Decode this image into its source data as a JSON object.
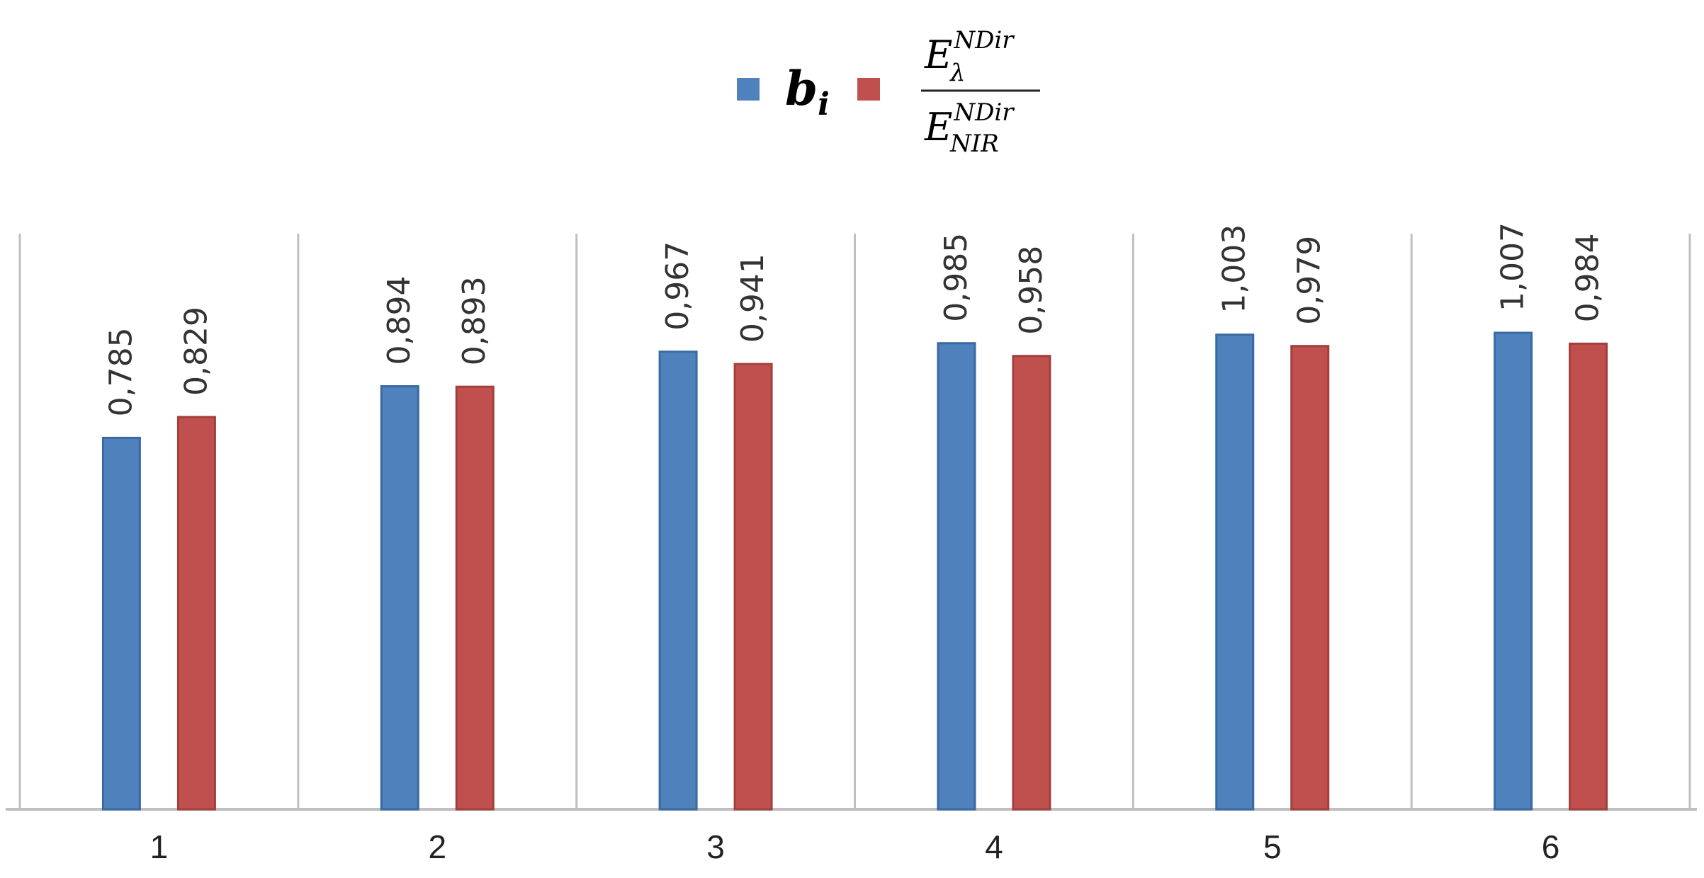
{
  "chart_data": {
    "type": "bar",
    "categories": [
      "1",
      "2",
      "3",
      "4",
      "5",
      "6"
    ],
    "series": [
      {
        "name": "b_i",
        "color": "#4f81bd",
        "values": [
          0.785,
          0.894,
          0.967,
          0.985,
          1.003,
          1.007
        ],
        "labels": [
          "0,785",
          "0,894",
          "0,967",
          "0,985",
          "1,003",
          "1,007"
        ]
      },
      {
        "name": "E_λ^NDir / E_NIR^NDir",
        "color": "#c0504d",
        "values": [
          0.829,
          0.893,
          0.941,
          0.958,
          0.979,
          0.984
        ],
        "labels": [
          "0,829",
          "0,893",
          "0,941",
          "0,958",
          "0,979",
          "0,984"
        ]
      }
    ],
    "legend": {
      "placement": "top",
      "series1": {
        "base": "b",
        "sub": "i"
      },
      "series2": {
        "numerator": {
          "base": "E",
          "sup": "NDir",
          "sub": "λ"
        },
        "denominator": {
          "base": "E",
          "sup": "NDir",
          "sub": "NIR"
        }
      }
    },
    "ylim": [
      0,
      1.2
    ],
    "grid": "vertical category separators",
    "colors": {
      "axis": "#bfbfbf",
      "separator": "#bfbfbf"
    }
  }
}
